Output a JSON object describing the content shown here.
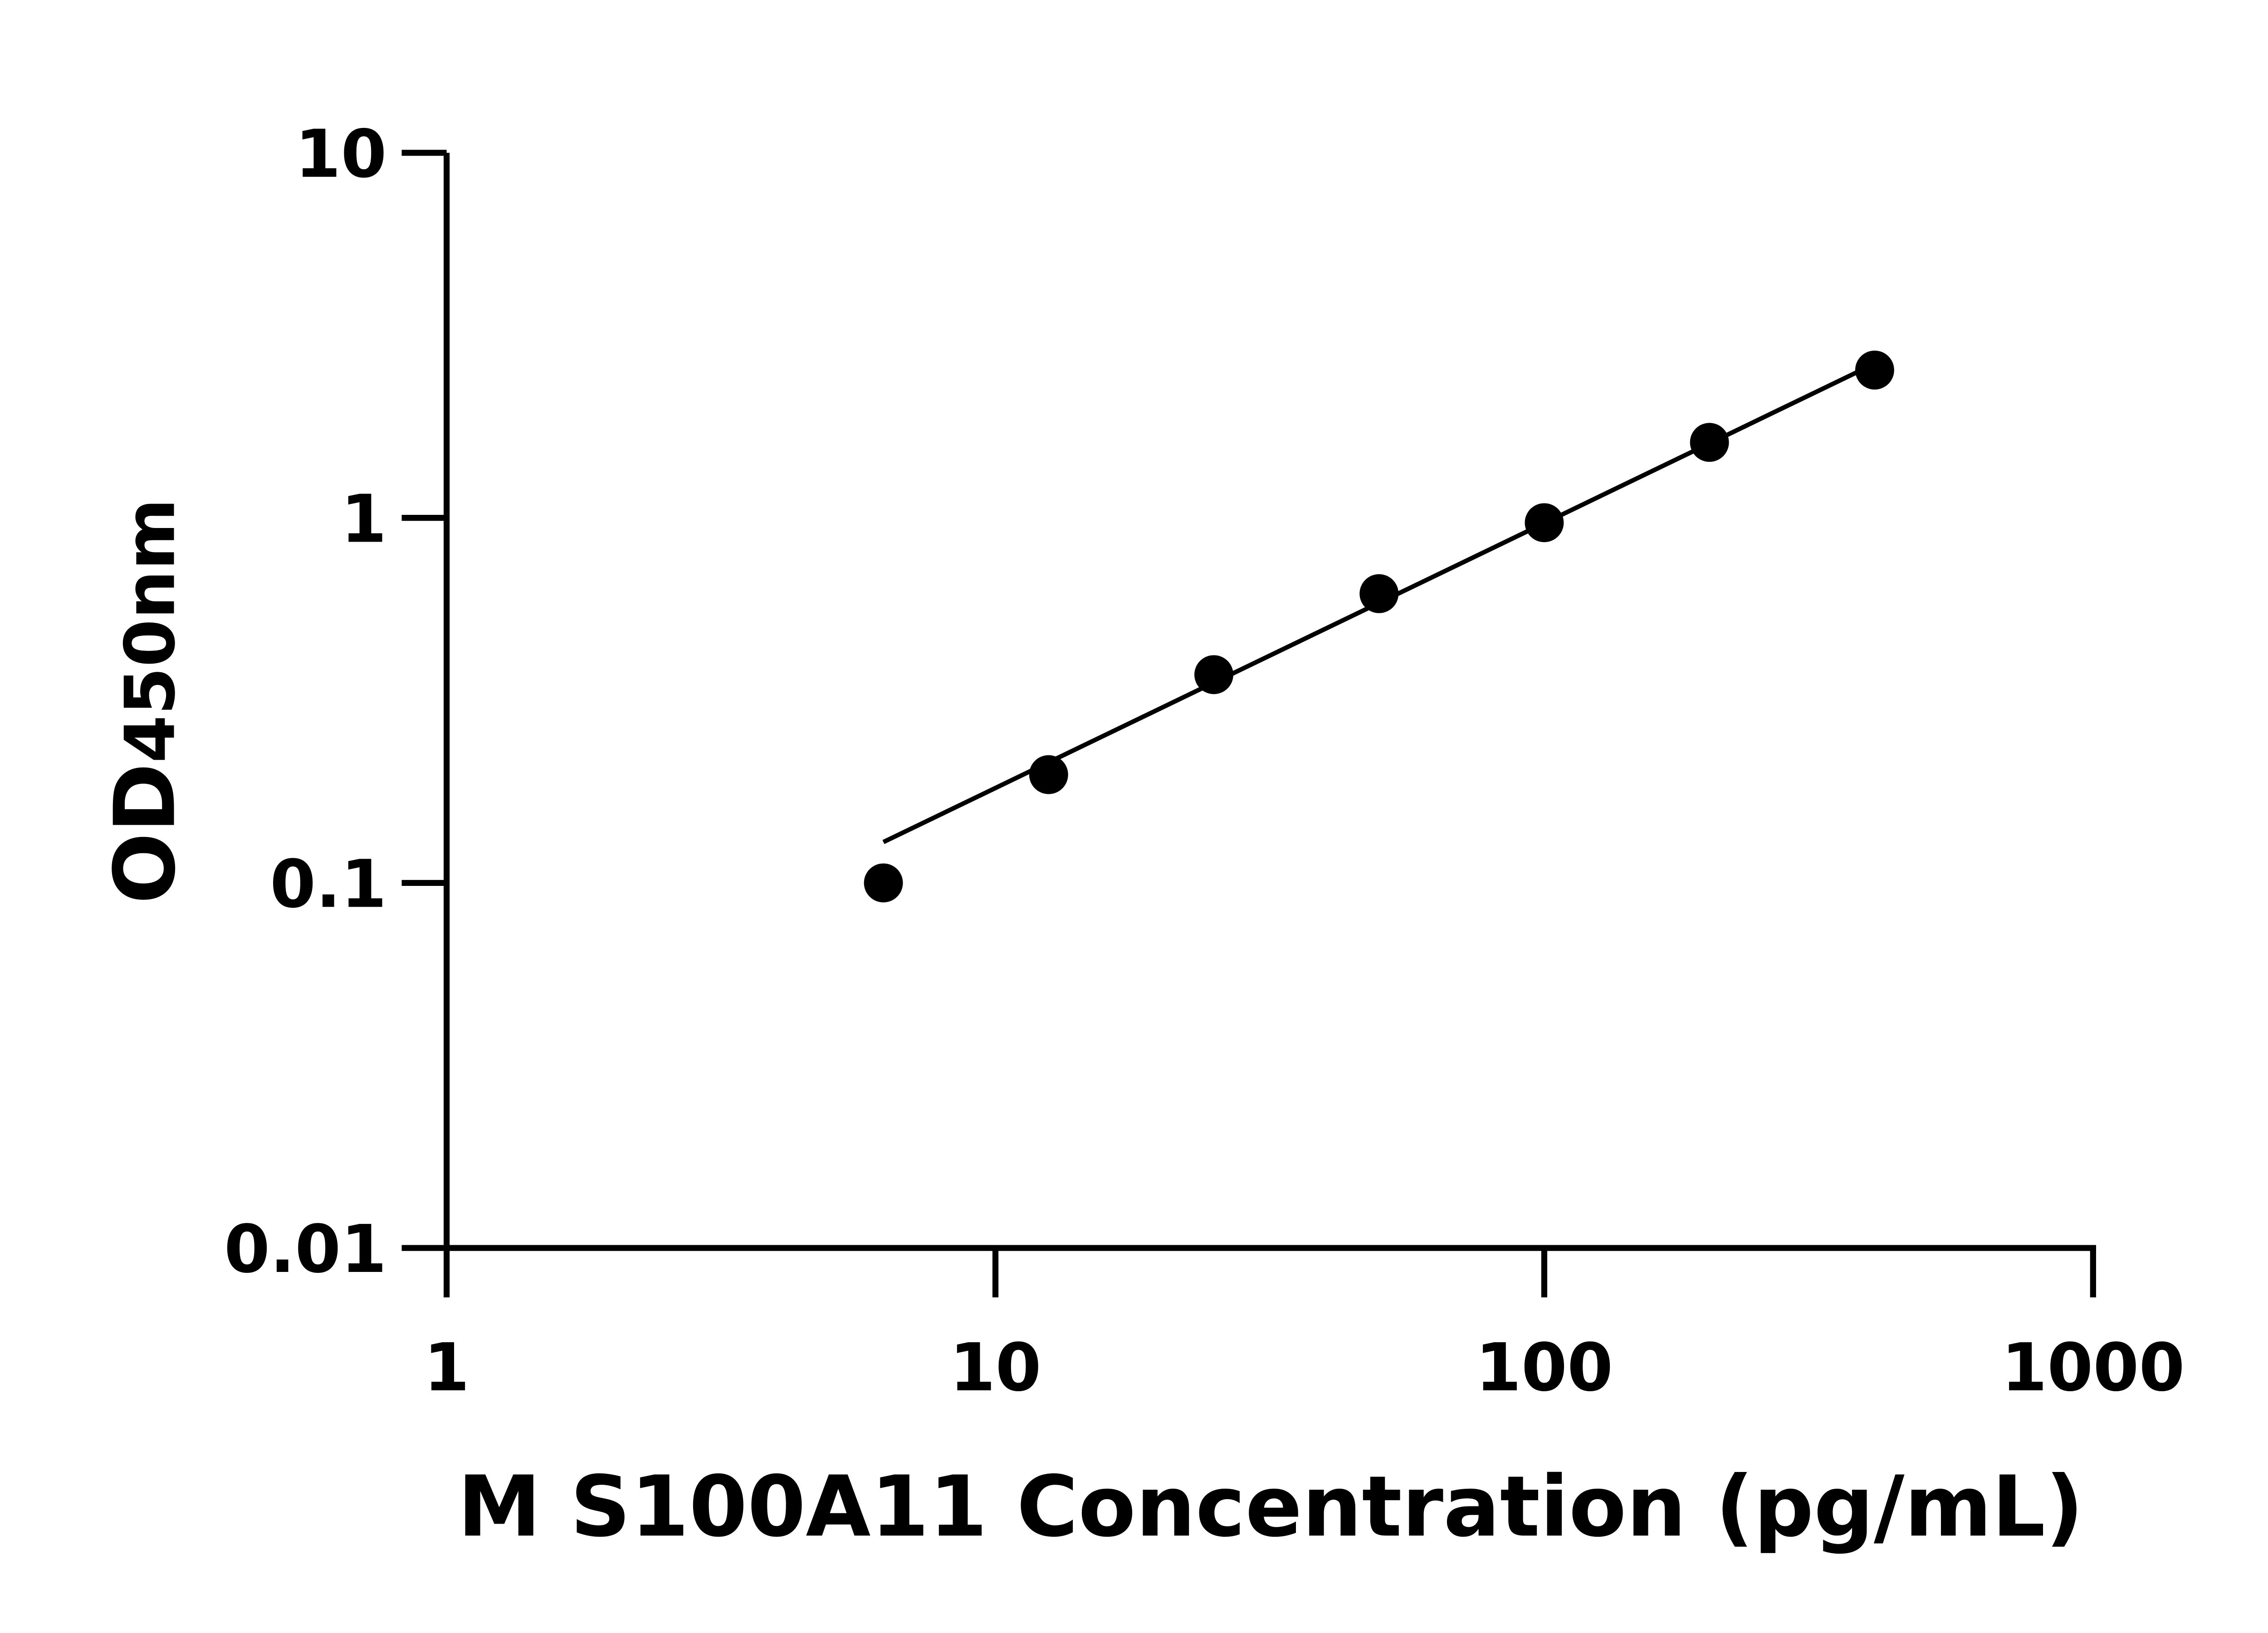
{
  "chart_data": {
    "type": "scatter",
    "title": "",
    "xlabel": "M S100A11 Concentration (pg/mL)",
    "ylabel_main": "OD",
    "ylabel_sub": "450nm",
    "x_scale": "log",
    "y_scale": "log",
    "xlim": [
      1,
      1000
    ],
    "ylim": [
      0.01,
      10
    ],
    "x_ticks": [
      "1",
      "10",
      "100",
      "1000"
    ],
    "y_ticks": [
      "0.01",
      "0.1",
      "1",
      "10"
    ],
    "grid": false,
    "legend": "none",
    "marker_color": "#000000",
    "fit_line": "log-log linear fit",
    "series": [
      {
        "x": [
          6.25,
          12.5,
          25,
          50,
          100,
          200,
          400
        ],
        "y": [
          0.1,
          0.198,
          0.372,
          0.62,
          0.97,
          1.61,
          2.54
        ]
      }
    ]
  }
}
